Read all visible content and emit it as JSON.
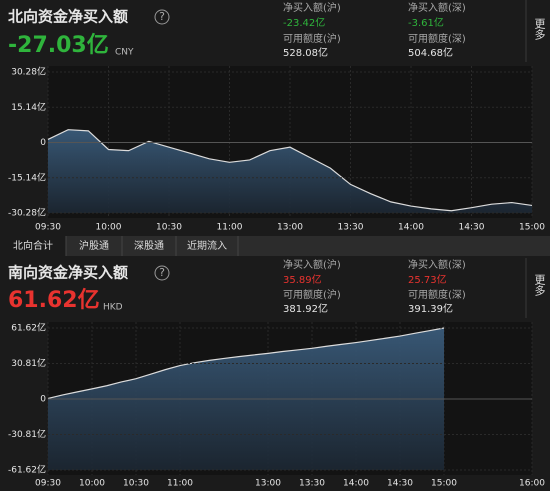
{
  "north": {
    "title": "北向资金净买入额",
    "help": "?",
    "value": "-27.03亿",
    "currency": "CNY",
    "more": "更多",
    "stats": [
      {
        "label": "净买入额(沪)",
        "value": "-23.42亿"
      },
      {
        "label": "净买入额(深)",
        "value": "-3.61亿"
      },
      {
        "label": "可用额度(沪)",
        "value": "528.08亿"
      },
      {
        "label": "可用额度(深)",
        "value": "504.68亿"
      }
    ]
  },
  "tabs": [
    "北向合计",
    "沪股通",
    "深股通",
    "近期流入"
  ],
  "south": {
    "title": "南向资金净买入额",
    "help": "?",
    "value": "61.62亿",
    "currency": "HKD",
    "more": "更多",
    "stats": [
      {
        "label": "净买入额(沪)",
        "value": "35.89亿"
      },
      {
        "label": "净买入额(深)",
        "value": "25.73亿"
      },
      {
        "label": "可用额度(沪)",
        "value": "381.92亿"
      },
      {
        "label": "可用额度(深)",
        "value": "391.39亿"
      }
    ]
  },
  "chart_data": [
    {
      "type": "area",
      "color": "#dcdcdc",
      "fill": "#3a5b7a",
      "x": [
        "09:30",
        "09:40",
        "09:50",
        "10:00",
        "10:10",
        "10:20",
        "10:30",
        "10:40",
        "10:50",
        "11:00",
        "11:10",
        "11:20",
        "13:00",
        "13:10",
        "13:20",
        "13:30",
        "13:40",
        "13:50",
        "14:00",
        "14:10",
        "14:20",
        "14:30",
        "14:40",
        "14:50",
        "15:00"
      ],
      "values": [
        1.3,
        5.5,
        5.0,
        -3.0,
        -3.5,
        0.5,
        -2.0,
        -4.5,
        -7.0,
        -8.5,
        -7.5,
        -3.5,
        -2.0,
        -6.5,
        -11.0,
        -18.0,
        -22.0,
        -25.5,
        -27.3,
        -28.5,
        -29.3,
        -28.0,
        -26.5,
        -25.8,
        -27.03
      ],
      "ylim": [
        -30.28,
        30.28
      ],
      "yticks": [
        {
          "value": 30.28,
          "label": "30.28亿"
        },
        {
          "value": 15.14,
          "label": "15.14亿"
        },
        0,
        {
          "value": -15.14,
          "label": "-15.14亿"
        },
        {
          "value": -30.28,
          "label": "-30.28亿"
        }
      ],
      "xticks": [
        "09:30",
        "10:00",
        "10:30",
        "11:00",
        "13:00",
        "13:30",
        "14:00",
        "14:30",
        "15:00"
      ],
      "grid": true
    },
    {
      "type": "area",
      "color": "#dcdcdc",
      "fill": "#3a5b7a",
      "x": [
        "09:30",
        "09:40",
        "09:50",
        "10:00",
        "10:10",
        "10:20",
        "10:30",
        "10:40",
        "10:50",
        "11:00",
        "11:10",
        "11:20",
        "11:30",
        "11:40",
        "11:50",
        "13:00",
        "13:10",
        "13:20",
        "13:30",
        "13:40",
        "13:50",
        "14:00",
        "14:10",
        "14:20",
        "14:30",
        "14:40",
        "14:50",
        "15:00",
        "15:10",
        "15:20",
        "15:30",
        "15:40",
        "15:50",
        "16:00"
      ],
      "values": [
        0.5,
        3.5,
        6.2,
        8.8,
        11.5,
        14.8,
        17.6,
        21.5,
        25.5,
        29.0,
        31.5,
        33.5,
        35.2,
        36.8,
        38.2,
        39.6,
        41.2,
        42.6,
        44.0,
        45.8,
        47.4,
        49.0,
        50.8,
        52.7,
        54.6,
        57.0,
        59.3,
        61.62,
        null,
        null,
        null,
        null,
        null,
        null
      ],
      "ylim": [
        -61.62,
        61.62
      ],
      "yticks": [
        {
          "value": 61.62,
          "label": "61.62亿"
        },
        {
          "value": 30.81,
          "label": "30.81亿"
        },
        0,
        {
          "value": -30.81,
          "label": "-30.81亿"
        },
        {
          "value": -61.62,
          "label": "-61.62亿"
        }
      ],
      "xticks": [
        "09:30",
        "10:00",
        "10:30",
        "11:00",
        "13:00",
        "13:30",
        "14:00",
        "14:30",
        "15:00",
        "16:00"
      ],
      "grid": true
    }
  ]
}
